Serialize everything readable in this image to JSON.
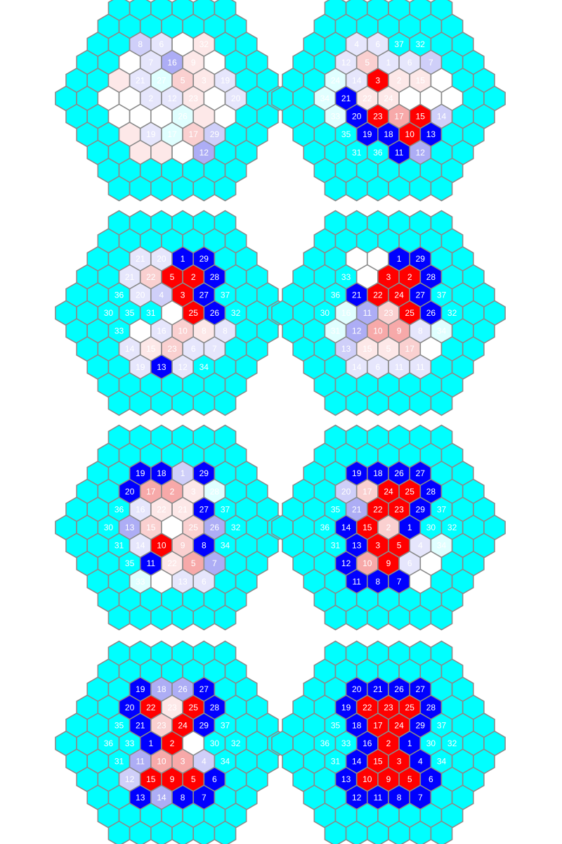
{
  "colors": {
    "border": "#8a8a8a",
    "text": "#ffffff",
    "c": "#00ffff",
    "B": "#0000ff",
    "R": "#ff0000",
    "b1": "#adadf5",
    "b2": "#cfcff9",
    "b3": "#e6e6fc",
    "r1": "#f7a9a9",
    "r2": "#fad0d0",
    "r3": "#fde8e8",
    "t": "#e0ffff",
    "w": "#ffffff"
  },
  "outer_color_key": "c",
  "hex_grids": [
    {
      "rows": [
        [
          [
            "b2",
            "8"
          ],
          [
            "b3",
            "6"
          ],
          [
            "w",
            ""
          ],
          [
            "r3",
            "32"
          ]
        ],
        [
          [
            "w",
            ""
          ],
          [
            "b3",
            "7"
          ],
          [
            "b1",
            "16"
          ],
          [
            "r3",
            "9"
          ],
          [
            "w",
            ""
          ]
        ],
        [
          [
            "r3",
            ""
          ],
          [
            "b3",
            "21"
          ],
          [
            "t",
            "27"
          ],
          [
            "r2",
            "5"
          ],
          [
            "r3",
            "3"
          ],
          [
            "b3",
            "19"
          ]
        ],
        [
          [
            "w",
            ""
          ],
          [
            "w",
            ""
          ],
          [
            "b3",
            "2"
          ],
          [
            "b3",
            "12"
          ],
          [
            "r3",
            "23"
          ],
          [
            "w",
            ""
          ],
          [
            "b3",
            "20"
          ]
        ],
        [
          [
            "w",
            ""
          ],
          [
            "w",
            ""
          ],
          [
            "w",
            ""
          ],
          [
            "t",
            "26"
          ],
          [
            "r3",
            ""
          ],
          [
            "w",
            ""
          ]
        ],
        [
          [
            "r3",
            ""
          ],
          [
            "b3",
            "19"
          ],
          [
            "t",
            "17"
          ],
          [
            "r2",
            "17"
          ],
          [
            "b2",
            "29"
          ]
        ],
        [
          [
            "r3",
            ""
          ],
          [
            "r3",
            ""
          ],
          [
            "w",
            ""
          ],
          [
            "b1",
            "12"
          ]
        ]
      ]
    },
    {
      "rows": [
        [
          [
            "b3",
            "4"
          ],
          [
            "b3",
            "6"
          ],
          [
            "c",
            "37"
          ],
          [
            "c",
            "32"
          ]
        ],
        [
          [
            "b3",
            "12"
          ],
          [
            "r2",
            "5"
          ],
          [
            "b3",
            "1"
          ],
          [
            "b3",
            "6"
          ],
          [
            "b2",
            "7"
          ]
        ],
        [
          [
            "t",
            "24"
          ],
          [
            "b3",
            "14"
          ],
          [
            "R",
            "3"
          ],
          [
            "r3",
            "2"
          ],
          [
            "r3",
            "15"
          ],
          [
            "w",
            ""
          ]
        ],
        [
          [
            "t",
            "34"
          ],
          [
            "B",
            "21"
          ],
          [
            "r3",
            "22"
          ],
          [
            "r3",
            "24"
          ],
          [
            "w",
            ""
          ],
          [
            "w",
            ""
          ],
          [
            "w",
            ""
          ]
        ],
        [
          [
            "t",
            "33"
          ],
          [
            "B",
            "20"
          ],
          [
            "R",
            "23"
          ],
          [
            "r1",
            "17"
          ],
          [
            "R",
            "15"
          ],
          [
            "b2",
            "14"
          ]
        ],
        [
          [
            "c",
            "35"
          ],
          [
            "B",
            "19"
          ],
          [
            "B",
            "18"
          ],
          [
            "R",
            "10"
          ],
          [
            "B",
            "13"
          ]
        ],
        [
          [
            "c",
            "31"
          ],
          [
            "c",
            "36"
          ],
          [
            "B",
            "11"
          ],
          [
            "b1",
            "12"
          ]
        ]
      ]
    },
    {
      "rows": [
        [
          [
            "b3",
            "21"
          ],
          [
            "b3",
            "20"
          ],
          [
            "B",
            "1"
          ],
          [
            "B",
            "29"
          ]
        ],
        [
          [
            "b3",
            "21"
          ],
          [
            "r2",
            "22"
          ],
          [
            "R",
            "5"
          ],
          [
            "R",
            "2"
          ],
          [
            "B",
            "28"
          ]
        ],
        [
          [
            "c",
            "36"
          ],
          [
            "b3",
            "20"
          ],
          [
            "b2",
            "4"
          ],
          [
            "R",
            "3"
          ],
          [
            "B",
            "27"
          ],
          [
            "c",
            "37"
          ]
        ],
        [
          [
            "c",
            "30"
          ],
          [
            "c",
            "35"
          ],
          [
            "c",
            "31"
          ],
          [
            "w",
            ""
          ],
          [
            "R",
            "25"
          ],
          [
            "B",
            "26"
          ],
          [
            "c",
            "32"
          ]
        ],
        [
          [
            "c",
            "33"
          ],
          [
            "w",
            ""
          ],
          [
            "b3",
            "16"
          ],
          [
            "r2",
            "10"
          ],
          [
            "r3",
            "8"
          ],
          [
            "b3",
            "8"
          ]
        ],
        [
          [
            "b3",
            "14"
          ],
          [
            "r3",
            "15"
          ],
          [
            "r2",
            "23"
          ],
          [
            "b3",
            "6"
          ],
          [
            "b3",
            "7"
          ]
        ],
        [
          [
            "b3",
            "19"
          ],
          [
            "B",
            "13"
          ],
          [
            "b3",
            "12"
          ],
          [
            "c",
            "34"
          ]
        ]
      ]
    },
    {
      "rows": [
        [
          [
            "w",
            ""
          ],
          [
            "w",
            ""
          ],
          [
            "B",
            "1"
          ],
          [
            "B",
            "29"
          ]
        ],
        [
          [
            "c",
            "33"
          ],
          [
            "w",
            ""
          ],
          [
            "R",
            "3"
          ],
          [
            "R",
            "2"
          ],
          [
            "B",
            "28"
          ]
        ],
        [
          [
            "c",
            "36"
          ],
          [
            "B",
            "21"
          ],
          [
            "R",
            "22"
          ],
          [
            "R",
            "24"
          ],
          [
            "B",
            "27"
          ],
          [
            "c",
            "37"
          ]
        ],
        [
          [
            "c",
            "30"
          ],
          [
            "t",
            "16"
          ],
          [
            "b1",
            "11"
          ],
          [
            "r2",
            "23"
          ],
          [
            "R",
            "25"
          ],
          [
            "B",
            "26"
          ],
          [
            "c",
            "32"
          ]
        ],
        [
          [
            "t",
            "31"
          ],
          [
            "b1",
            "12"
          ],
          [
            "r1",
            "10"
          ],
          [
            "r1",
            "9"
          ],
          [
            "b3",
            "8"
          ],
          [
            "t",
            "34"
          ]
        ],
        [
          [
            "b2",
            "13"
          ],
          [
            "r3",
            "15"
          ],
          [
            "r3",
            "5"
          ],
          [
            "r2",
            "17"
          ],
          [
            "w",
            ""
          ]
        ],
        [
          [
            "b3",
            "14"
          ],
          [
            "b3",
            "6"
          ],
          [
            "b3",
            "11"
          ],
          [
            "b3",
            "11"
          ]
        ]
      ]
    },
    {
      "rows": [
        [
          [
            "B",
            "19"
          ],
          [
            "B",
            "18"
          ],
          [
            "b2",
            "1"
          ],
          [
            "B",
            "29"
          ]
        ],
        [
          [
            "B",
            "20"
          ],
          [
            "r1",
            "17"
          ],
          [
            "r1",
            "2"
          ],
          [
            "r3",
            "3"
          ],
          [
            "t",
            "28"
          ]
        ],
        [
          [
            "c",
            "36"
          ],
          [
            "b3",
            "16"
          ],
          [
            "r3",
            "22"
          ],
          [
            "r3",
            "21"
          ],
          [
            "B",
            "27"
          ],
          [
            "c",
            "37"
          ]
        ],
        [
          [
            "c",
            "30"
          ],
          [
            "b1",
            "13"
          ],
          [
            "r2",
            "15"
          ],
          [
            "w",
            ""
          ],
          [
            "r2",
            "25"
          ],
          [
            "b1",
            "26"
          ],
          [
            "c",
            "32"
          ]
        ],
        [
          [
            "c",
            "31"
          ],
          [
            "b3",
            "14"
          ],
          [
            "R",
            "10"
          ],
          [
            "r2",
            "9"
          ],
          [
            "B",
            "8"
          ],
          [
            "c",
            "34"
          ]
        ],
        [
          [
            "c",
            "35"
          ],
          [
            "B",
            "11"
          ],
          [
            "r3",
            "22"
          ],
          [
            "r1",
            "5"
          ],
          [
            "b1",
            "7"
          ]
        ],
        [
          [
            "t",
            "33"
          ],
          [
            "w",
            ""
          ],
          [
            "b3",
            "13"
          ],
          [
            "b3",
            "6"
          ]
        ]
      ]
    },
    {
      "rows": [
        [
          [
            "B",
            "19"
          ],
          [
            "B",
            "18"
          ],
          [
            "B",
            "26"
          ],
          [
            "B",
            "27"
          ]
        ],
        [
          [
            "b2",
            "20"
          ],
          [
            "r2",
            "17"
          ],
          [
            "R",
            "24"
          ],
          [
            "R",
            "25"
          ],
          [
            "B",
            "28"
          ]
        ],
        [
          [
            "c",
            "35"
          ],
          [
            "b1",
            "21"
          ],
          [
            "R",
            "22"
          ],
          [
            "R",
            "23"
          ],
          [
            "B",
            "29"
          ],
          [
            "c",
            "37"
          ]
        ],
        [
          [
            "c",
            "36"
          ],
          [
            "B",
            "14"
          ],
          [
            "R",
            "15"
          ],
          [
            "r2",
            "2"
          ],
          [
            "B",
            "1"
          ],
          [
            "c",
            "30"
          ],
          [
            "c",
            "32"
          ]
        ],
        [
          [
            "c",
            "31"
          ],
          [
            "B",
            "13"
          ],
          [
            "R",
            "3"
          ],
          [
            "R",
            "5"
          ],
          [
            "b3",
            "4"
          ],
          [
            "t",
            "34"
          ]
        ],
        [
          [
            "B",
            "12"
          ],
          [
            "r1",
            "10"
          ],
          [
            "R",
            "9"
          ],
          [
            "b3",
            "6"
          ],
          [
            "w",
            ""
          ]
        ],
        [
          [
            "B",
            "11"
          ],
          [
            "B",
            "8"
          ],
          [
            "B",
            "7"
          ],
          [
            "w",
            ""
          ]
        ]
      ]
    },
    {
      "rows": [
        [
          [
            "B",
            "19"
          ],
          [
            "b1",
            "18"
          ],
          [
            "b1",
            "26"
          ],
          [
            "B",
            "27"
          ]
        ],
        [
          [
            "B",
            "20"
          ],
          [
            "R",
            "22"
          ],
          [
            "r3",
            "23"
          ],
          [
            "R",
            "25"
          ],
          [
            "B",
            "28"
          ]
        ],
        [
          [
            "c",
            "35"
          ],
          [
            "B",
            "21"
          ],
          [
            "r2",
            "23"
          ],
          [
            "R",
            "24"
          ],
          [
            "B",
            "29"
          ],
          [
            "c",
            "37"
          ]
        ],
        [
          [
            "c",
            "36"
          ],
          [
            "c",
            "33"
          ],
          [
            "B",
            "1"
          ],
          [
            "R",
            "2"
          ],
          [
            "w",
            ""
          ],
          [
            "c",
            "30"
          ],
          [
            "c",
            "32"
          ]
        ],
        [
          [
            "c",
            "31"
          ],
          [
            "b1",
            "11"
          ],
          [
            "r1",
            "10"
          ],
          [
            "r1",
            "3"
          ],
          [
            "b2",
            "4"
          ],
          [
            "c",
            "34"
          ]
        ],
        [
          [
            "b2",
            "12"
          ],
          [
            "R",
            "15"
          ],
          [
            "R",
            "9"
          ],
          [
            "R",
            "5"
          ],
          [
            "B",
            "6"
          ]
        ],
        [
          [
            "B",
            "13"
          ],
          [
            "b1",
            "14"
          ],
          [
            "B",
            "8"
          ],
          [
            "B",
            "7"
          ]
        ]
      ]
    },
    {
      "rows": [
        [
          [
            "B",
            "20"
          ],
          [
            "B",
            "21"
          ],
          [
            "B",
            "26"
          ],
          [
            "B",
            "27"
          ]
        ],
        [
          [
            "B",
            "19"
          ],
          [
            "R",
            "22"
          ],
          [
            "R",
            "23"
          ],
          [
            "R",
            "25"
          ],
          [
            "B",
            "28"
          ]
        ],
        [
          [
            "c",
            "35"
          ],
          [
            "B",
            "18"
          ],
          [
            "R",
            "17"
          ],
          [
            "R",
            "24"
          ],
          [
            "B",
            "29"
          ],
          [
            "c",
            "37"
          ]
        ],
        [
          [
            "c",
            "36"
          ],
          [
            "c",
            "33"
          ],
          [
            "B",
            "16"
          ],
          [
            "R",
            "2"
          ],
          [
            "B",
            "1"
          ],
          [
            "c",
            "30"
          ],
          [
            "c",
            "32"
          ]
        ],
        [
          [
            "c",
            "31"
          ],
          [
            "B",
            "14"
          ],
          [
            "R",
            "15"
          ],
          [
            "R",
            "3"
          ],
          [
            "B",
            "4"
          ],
          [
            "c",
            "34"
          ]
        ],
        [
          [
            "B",
            "13"
          ],
          [
            "R",
            "10"
          ],
          [
            "R",
            "9"
          ],
          [
            "R",
            "5"
          ],
          [
            "B",
            "6"
          ]
        ],
        [
          [
            "B",
            "12"
          ],
          [
            "B",
            "11"
          ],
          [
            "B",
            "8"
          ],
          [
            "B",
            "7"
          ]
        ]
      ]
    }
  ]
}
